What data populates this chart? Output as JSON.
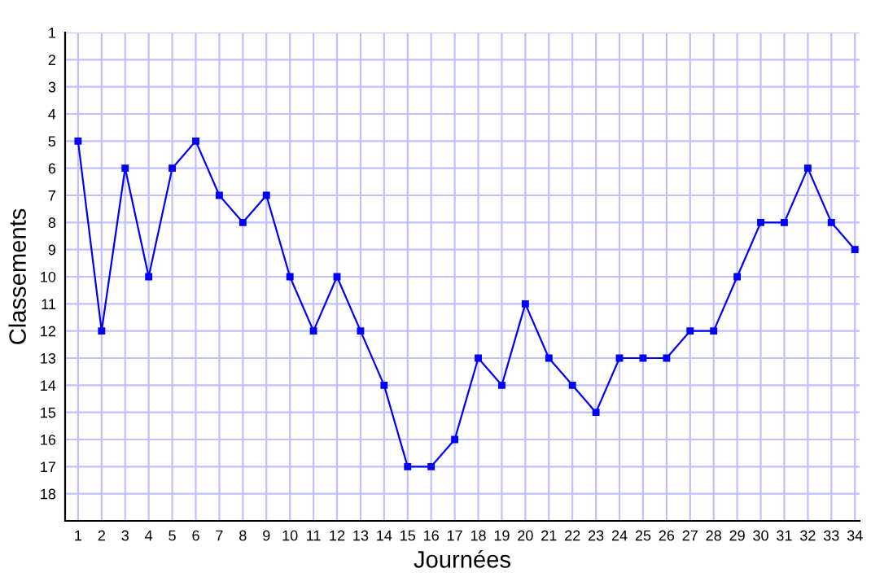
{
  "chart_data": {
    "type": "line",
    "xlabel": "Journées",
    "ylabel": "Classements",
    "x": [
      1,
      2,
      3,
      4,
      5,
      6,
      7,
      8,
      9,
      10,
      11,
      12,
      13,
      14,
      15,
      16,
      17,
      18,
      19,
      20,
      21,
      22,
      23,
      24,
      25,
      26,
      27,
      28,
      29,
      30,
      31,
      32,
      33,
      34
    ],
    "series": [
      {
        "color": "#0000ff",
        "values": [
          5,
          12,
          6,
          10,
          6,
          5,
          7,
          8,
          7,
          10,
          12,
          10,
          12,
          14,
          17,
          17,
          16,
          13,
          14,
          11,
          13,
          14,
          15,
          13,
          13,
          13,
          12,
          12,
          10,
          8,
          8,
          6,
          8,
          9
        ]
      }
    ],
    "xlim": [
      0.45,
      34.2
    ],
    "xticks": [
      1,
      2,
      3,
      4,
      5,
      6,
      7,
      8,
      9,
      10,
      11,
      12,
      13,
      14,
      15,
      16,
      17,
      18,
      19,
      20,
      21,
      22,
      23,
      24,
      25,
      26,
      27,
      28,
      29,
      30,
      31,
      32,
      33,
      34
    ],
    "ylim": [
      19,
      1
    ],
    "yticks": [
      1,
      2,
      3,
      4,
      5,
      6,
      7,
      8,
      9,
      10,
      11,
      12,
      13,
      14,
      15,
      16,
      17,
      18
    ],
    "grid": true,
    "marker": "square",
    "line_style": "solid"
  }
}
